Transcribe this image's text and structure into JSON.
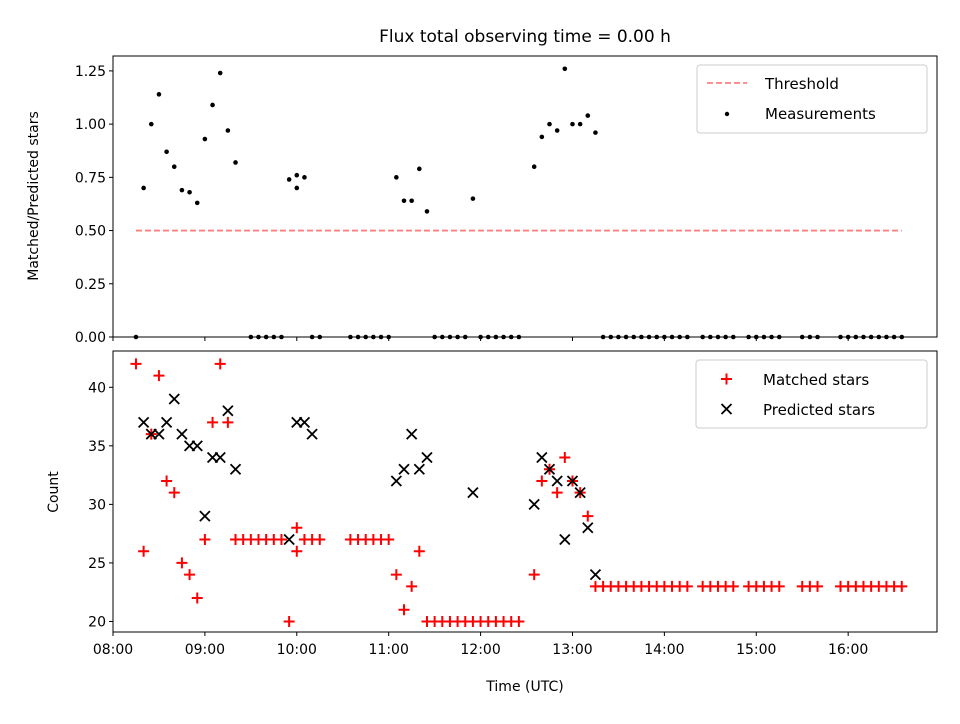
{
  "title": "Flux total observing time = 0.00 h",
  "colors": {
    "threshold": "#ff7f7f",
    "measurement": "#000000",
    "matched": "#ff0000",
    "predicted": "#000000"
  },
  "chart_data": [
    {
      "type": "scatter",
      "title": "Flux total observing time = 0.00 h",
      "xlabel": "",
      "ylabel": "Matched/Predicted stars",
      "xlim": [
        "08:00",
        "16:58"
      ],
      "ylim": [
        0,
        1.32
      ],
      "x_ticks": [
        "08:00",
        "09:00",
        "10:00",
        "11:00",
        "12:00",
        "13:00",
        "14:00",
        "15:00",
        "16:00"
      ],
      "y_ticks": [
        "0.00",
        "0.25",
        "0.50",
        "0.75",
        "1.00",
        "1.25"
      ],
      "legend": {
        "placement": "top-right",
        "entries": [
          "Threshold",
          "Measurements"
        ]
      },
      "grid": false,
      "series": [
        {
          "name": "Threshold",
          "kind": "dashed-line",
          "points": [
            [
              "08:15",
              0.5
            ],
            [
              "16:35",
              0.5
            ]
          ]
        },
        {
          "name": "Measurements",
          "kind": "scatter",
          "points": [
            [
              "08:15",
              0.0
            ],
            [
              "08:20",
              0.7
            ],
            [
              "08:25",
              1.0
            ],
            [
              "08:30",
              1.14
            ],
            [
              "08:35",
              0.87
            ],
            [
              "08:40",
              0.8
            ],
            [
              "08:45",
              0.69
            ],
            [
              "08:50",
              0.68
            ],
            [
              "08:55",
              0.63
            ],
            [
              "09:00",
              0.93
            ],
            [
              "09:05",
              1.09
            ],
            [
              "09:10",
              1.24
            ],
            [
              "09:15",
              0.97
            ],
            [
              "09:20",
              0.82
            ],
            [
              "09:30",
              0.0
            ],
            [
              "09:35",
              0.0
            ],
            [
              "09:40",
              0.0
            ],
            [
              "09:45",
              0.0
            ],
            [
              "09:50",
              0.0
            ],
            [
              "09:55",
              0.74
            ],
            [
              "10:00",
              0.76
            ],
            [
              "10:00",
              0.7
            ],
            [
              "10:05",
              0.75
            ],
            [
              "10:10",
              0.0
            ],
            [
              "10:15",
              0.0
            ],
            [
              "10:35",
              0.0
            ],
            [
              "10:40",
              0.0
            ],
            [
              "10:45",
              0.0
            ],
            [
              "10:50",
              0.0
            ],
            [
              "10:55",
              0.0
            ],
            [
              "11:00",
              0.0
            ],
            [
              "11:05",
              0.75
            ],
            [
              "11:10",
              0.64
            ],
            [
              "11:15",
              0.64
            ],
            [
              "11:20",
              0.79
            ],
            [
              "11:25",
              0.59
            ],
            [
              "11:30",
              0.0
            ],
            [
              "11:35",
              0.0
            ],
            [
              "11:40",
              0.0
            ],
            [
              "11:45",
              0.0
            ],
            [
              "11:50",
              0.0
            ],
            [
              "11:55",
              0.65
            ],
            [
              "12:00",
              0.0
            ],
            [
              "12:05",
              0.0
            ],
            [
              "12:10",
              0.0
            ],
            [
              "12:15",
              0.0
            ],
            [
              "12:20",
              0.0
            ],
            [
              "12:25",
              0.0
            ],
            [
              "12:35",
              0.8
            ],
            [
              "12:40",
              0.94
            ],
            [
              "12:45",
              1.0
            ],
            [
              "12:50",
              0.97
            ],
            [
              "12:55",
              1.26
            ],
            [
              "13:00",
              1.0
            ],
            [
              "13:05",
              1.0
            ],
            [
              "13:10",
              1.04
            ],
            [
              "13:15",
              0.96
            ],
            [
              "13:20",
              0.0
            ],
            [
              "13:25",
              0.0
            ],
            [
              "13:30",
              0.0
            ],
            [
              "13:35",
              0.0
            ],
            [
              "13:40",
              0.0
            ],
            [
              "13:45",
              0.0
            ],
            [
              "13:50",
              0.0
            ],
            [
              "13:55",
              0.0
            ],
            [
              "14:00",
              0.0
            ],
            [
              "14:05",
              0.0
            ],
            [
              "14:10",
              0.0
            ],
            [
              "14:15",
              0.0
            ],
            [
              "14:25",
              0.0
            ],
            [
              "14:30",
              0.0
            ],
            [
              "14:35",
              0.0
            ],
            [
              "14:40",
              0.0
            ],
            [
              "14:45",
              0.0
            ],
            [
              "14:55",
              0.0
            ],
            [
              "15:00",
              0.0
            ],
            [
              "15:05",
              0.0
            ],
            [
              "15:10",
              0.0
            ],
            [
              "15:15",
              0.0
            ],
            [
              "15:30",
              0.0
            ],
            [
              "15:35",
              0.0
            ],
            [
              "15:40",
              0.0
            ],
            [
              "15:55",
              0.0
            ],
            [
              "16:00",
              0.0
            ],
            [
              "16:05",
              0.0
            ],
            [
              "16:10",
              0.0
            ],
            [
              "16:15",
              0.0
            ],
            [
              "16:20",
              0.0
            ],
            [
              "16:25",
              0.0
            ],
            [
              "16:30",
              0.0
            ],
            [
              "16:35",
              0.0
            ]
          ]
        }
      ]
    },
    {
      "type": "scatter",
      "title": "",
      "xlabel": "Time (UTC)",
      "ylabel": "Count",
      "xlim": [
        "08:00",
        "16:58"
      ],
      "ylim": [
        19.1,
        43.1
      ],
      "x_ticks": [
        "08:00",
        "09:00",
        "10:00",
        "11:00",
        "12:00",
        "13:00",
        "14:00",
        "15:00",
        "16:00"
      ],
      "y_ticks": [
        "20",
        "25",
        "30",
        "35",
        "40"
      ],
      "legend": {
        "placement": "top-right",
        "entries": [
          "Matched stars",
          "Predicted stars"
        ]
      },
      "grid": false,
      "series": [
        {
          "name": "Matched stars",
          "marker": "+",
          "points": [
            [
              "08:15",
              42
            ],
            [
              "08:20",
              26
            ],
            [
              "08:25",
              36
            ],
            [
              "08:30",
              41
            ],
            [
              "08:35",
              32
            ],
            [
              "08:40",
              31
            ],
            [
              "08:45",
              25
            ],
            [
              "08:50",
              24
            ],
            [
              "08:55",
              22
            ],
            [
              "09:00",
              27
            ],
            [
              "09:05",
              37
            ],
            [
              "09:10",
              42
            ],
            [
              "09:15",
              37
            ],
            [
              "09:20",
              27
            ],
            [
              "09:25",
              27
            ],
            [
              "09:30",
              27
            ],
            [
              "09:35",
              27
            ],
            [
              "09:40",
              27
            ],
            [
              "09:45",
              27
            ],
            [
              "09:50",
              27
            ],
            [
              "09:55",
              20
            ],
            [
              "10:00",
              28
            ],
            [
              "10:00",
              26
            ],
            [
              "10:05",
              27
            ],
            [
              "10:10",
              27
            ],
            [
              "10:15",
              27
            ],
            [
              "10:35",
              27
            ],
            [
              "10:40",
              27
            ],
            [
              "10:45",
              27
            ],
            [
              "10:50",
              27
            ],
            [
              "10:55",
              27
            ],
            [
              "11:00",
              27
            ],
            [
              "11:05",
              24
            ],
            [
              "11:10",
              21
            ],
            [
              "11:15",
              23
            ],
            [
              "11:20",
              26
            ],
            [
              "11:25",
              20
            ],
            [
              "11:30",
              20
            ],
            [
              "11:35",
              20
            ],
            [
              "11:40",
              20
            ],
            [
              "11:45",
              20
            ],
            [
              "11:50",
              20
            ],
            [
              "11:55",
              20
            ],
            [
              "12:00",
              20
            ],
            [
              "12:05",
              20
            ],
            [
              "12:10",
              20
            ],
            [
              "12:15",
              20
            ],
            [
              "12:20",
              20
            ],
            [
              "12:25",
              20
            ],
            [
              "12:35",
              24
            ],
            [
              "12:40",
              32
            ],
            [
              "12:45",
              33
            ],
            [
              "12:50",
              31
            ],
            [
              "12:55",
              34
            ],
            [
              "13:00",
              32
            ],
            [
              "13:05",
              31
            ],
            [
              "13:10",
              29
            ],
            [
              "13:15",
              23
            ],
            [
              "13:20",
              23
            ],
            [
              "13:25",
              23
            ],
            [
              "13:30",
              23
            ],
            [
              "13:35",
              23
            ],
            [
              "13:40",
              23
            ],
            [
              "13:45",
              23
            ],
            [
              "13:50",
              23
            ],
            [
              "13:55",
              23
            ],
            [
              "14:00",
              23
            ],
            [
              "14:05",
              23
            ],
            [
              "14:10",
              23
            ],
            [
              "14:15",
              23
            ],
            [
              "14:25",
              23
            ],
            [
              "14:30",
              23
            ],
            [
              "14:35",
              23
            ],
            [
              "14:40",
              23
            ],
            [
              "14:45",
              23
            ],
            [
              "14:55",
              23
            ],
            [
              "15:00",
              23
            ],
            [
              "15:05",
              23
            ],
            [
              "15:10",
              23
            ],
            [
              "15:15",
              23
            ],
            [
              "15:30",
              23
            ],
            [
              "15:35",
              23
            ],
            [
              "15:40",
              23
            ],
            [
              "15:55",
              23
            ],
            [
              "16:00",
              23
            ],
            [
              "16:05",
              23
            ],
            [
              "16:10",
              23
            ],
            [
              "16:15",
              23
            ],
            [
              "16:20",
              23
            ],
            [
              "16:25",
              23
            ],
            [
              "16:30",
              23
            ],
            [
              "16:35",
              23
            ]
          ]
        },
        {
          "name": "Predicted stars",
          "marker": "x",
          "points": [
            [
              "08:20",
              37
            ],
            [
              "08:25",
              36
            ],
            [
              "08:30",
              36
            ],
            [
              "08:35",
              37
            ],
            [
              "08:40",
              39
            ],
            [
              "08:45",
              36
            ],
            [
              "08:50",
              35
            ],
            [
              "08:55",
              35
            ],
            [
              "09:00",
              29
            ],
            [
              "09:05",
              34
            ],
            [
              "09:10",
              34
            ],
            [
              "09:15",
              38
            ],
            [
              "09:20",
              33
            ],
            [
              "09:55",
              27
            ],
            [
              "10:00",
              37
            ],
            [
              "10:05",
              37
            ],
            [
              "10:10",
              36
            ],
            [
              "11:05",
              32
            ],
            [
              "11:10",
              33
            ],
            [
              "11:15",
              36
            ],
            [
              "11:20",
              33
            ],
            [
              "11:25",
              34
            ],
            [
              "11:55",
              31
            ],
            [
              "12:35",
              30
            ],
            [
              "12:40",
              34
            ],
            [
              "12:45",
              33
            ],
            [
              "12:50",
              32
            ],
            [
              "12:55",
              27
            ],
            [
              "13:00",
              32
            ],
            [
              "13:05",
              31
            ],
            [
              "13:10",
              28
            ],
            [
              "13:15",
              24
            ]
          ]
        }
      ]
    }
  ]
}
